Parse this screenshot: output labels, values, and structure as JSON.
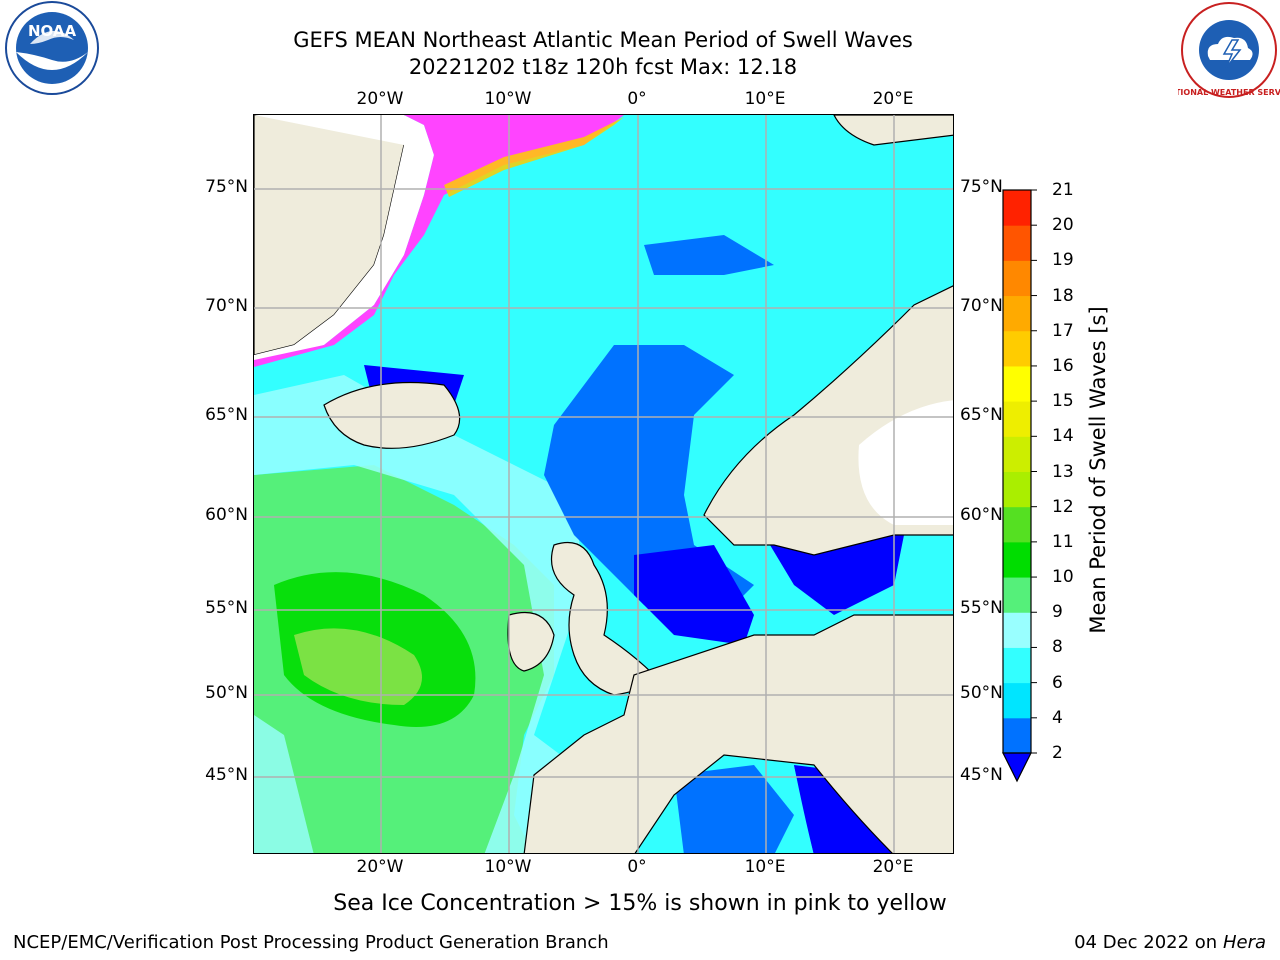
{
  "header": {
    "title_line1": "GEFS MEAN Northeast Atlantic Mean Period of Swell Waves",
    "title_line2": "20221202 t18z 120h fcst   Max: 12.18"
  },
  "logos": {
    "left": "noaa-logo",
    "left_text": "NOAA",
    "right": "national-weather-service-logo",
    "right_text": "NATIONAL WEATHER SERVICE"
  },
  "map": {
    "region": "Northeast Atlantic",
    "lon_labels_top": [
      "20°W",
      "10°W",
      "0°",
      "10°E",
      "20°E"
    ],
    "lon_labels_bottom": [
      "20°W",
      "10°W",
      "0°",
      "10°E",
      "20°E"
    ],
    "lat_labels_left": [
      "75°N",
      "70°N",
      "65°N",
      "60°N",
      "55°N",
      "50°N",
      "45°N"
    ],
    "lat_labels_right": [
      "75°N",
      "70°N",
      "65°N",
      "60°N",
      "55°N",
      "50°N",
      "45°N"
    ],
    "colors": {
      "land": "#efecdc",
      "ice": "#ff44ff",
      "grid": "#b0b0b0"
    }
  },
  "colorbar": {
    "label": "Mean Period of Swell Waves [s]",
    "ticks": [
      "2",
      "4",
      "6",
      "8",
      "9",
      "10",
      "11",
      "12",
      "13",
      "14",
      "15",
      "16",
      "17",
      "18",
      "19",
      "20",
      "21"
    ],
    "colors": [
      "#0072ff",
      "#00e5ff",
      "#33ffff",
      "#99ffff",
      "#55f07a",
      "#00dd00",
      "#55e022",
      "#aaee00",
      "#ccee00",
      "#eeee00",
      "#ffff00",
      "#ffcc00",
      "#ffaa00",
      "#ff8800",
      "#ff5500",
      "#ff2200"
    ],
    "extend_color": "#0000ff"
  },
  "footer": {
    "caption": "Sea Ice Concentration > 15% is shown in pink to yellow",
    "left_credit": "NCEP/EMC/Verification Post Processing Product Generation Branch",
    "right_credit_date": "04 Dec 2022 on",
    "right_credit_host": "Hera"
  }
}
